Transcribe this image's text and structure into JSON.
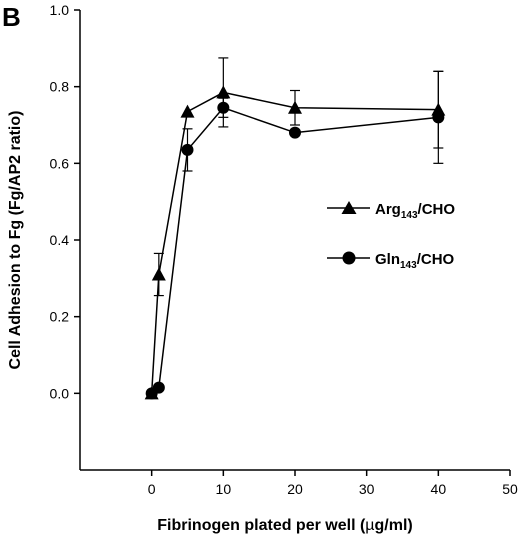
{
  "panel_label": "B",
  "chart_data": {
    "type": "line",
    "xlabel_parts": [
      "Fibrinogen plated per well (",
      "µ",
      "g/ml)"
    ],
    "ylabel": "Cell Adhesion to Fg (Fg/AP2 ratio)",
    "xlim": [
      -10,
      50
    ],
    "ylim": [
      -0.2,
      1.0
    ],
    "x_ticks": [
      0,
      10,
      20,
      30,
      40,
      50
    ],
    "y_ticks": [
      0.0,
      0.2,
      0.4,
      0.6,
      0.8,
      1.0
    ],
    "x_tick_labels": [
      "0",
      "10",
      "20",
      "30",
      "40",
      "50"
    ],
    "y_tick_labels": [
      "0.0",
      "0.2",
      "0.4",
      "0.6",
      "0.8",
      "1.0"
    ],
    "grid": false,
    "legend_position": "right",
    "series": [
      {
        "name_base": "Arg",
        "name_sub": "143",
        "name_rest": "/CHO",
        "marker": "triangle",
        "x": [
          0,
          1,
          5,
          10,
          20,
          40
        ],
        "y": [
          0.0,
          0.31,
          0.735,
          0.785,
          0.745,
          0.74
        ],
        "err": [
          0.0,
          0.055,
          0.0,
          0.09,
          0.045,
          0.1
        ]
      },
      {
        "name_base": "Gln",
        "name_sub": "143",
        "name_rest": "/CHO",
        "marker": "circle",
        "x": [
          0,
          1,
          5,
          10,
          20,
          40
        ],
        "y": [
          0.0,
          0.015,
          0.635,
          0.745,
          0.68,
          0.72
        ],
        "err": [
          0.0,
          0.0,
          0.055,
          0.025,
          0.0,
          0.12
        ]
      }
    ]
  }
}
